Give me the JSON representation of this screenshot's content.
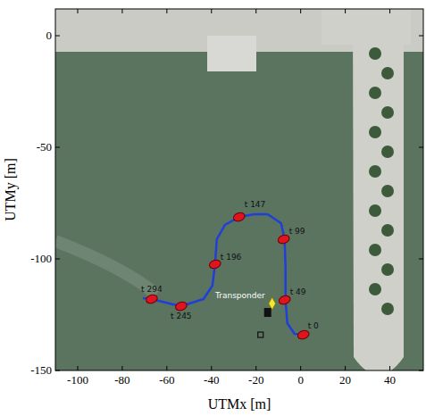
{
  "chart_data": {
    "type": "line",
    "x_label": "UTMx [m]",
    "y_label": "UTMy [m]",
    "xlim": [
      -110,
      55
    ],
    "ylim": [
      -150,
      12
    ],
    "xticks": [
      -100,
      -80,
      -60,
      -40,
      -20,
      0,
      20,
      40
    ],
    "yticks": [
      -150,
      -100,
      -50,
      0
    ],
    "grid": false,
    "series": [
      {
        "type": "line",
        "color": "#1f3fd8",
        "line_style": "solid",
        "x": [
          2.4,
          -2.8,
          -6,
          -6.8,
          -6.8,
          -7.2,
          -8.8,
          -14.8,
          -20.8,
          -27.6,
          -34,
          -37.6,
          -38.4,
          -39.6,
          -43.6,
          -53.6,
          -58.8,
          -66.8,
          -70.8
        ],
        "values": [
          -134,
          -133.6,
          -128.8,
          -118.4,
          -104,
          -91.2,
          -84,
          -80,
          -80,
          -81.2,
          -84.8,
          -91.2,
          -102.4,
          -112,
          -118,
          -121.2,
          -120,
          -118,
          -117.6
        ]
      },
      {
        "type": "scatter",
        "color": "#e0141e",
        "marker": "ellipse",
        "x": [
          1.2,
          -7.2,
          -7.6,
          -27.6,
          -38.4,
          -53.6,
          -66.8
        ],
        "values": [
          -134,
          -118.4,
          -91.2,
          -81.2,
          -102.4,
          -121.2,
          -118
        ],
        "labels": [
          "t 0",
          "t 49",
          "t 99",
          "t 147",
          "t 196",
          "t 245",
          "t 294"
        ]
      },
      {
        "type": "scatter",
        "color": "#f2e63a",
        "marker": "diamond",
        "x": [
          -12.8
        ],
        "values": [
          -120
        ],
        "labels": [
          "Transponder"
        ]
      },
      {
        "type": "scatter",
        "color": "#111111",
        "marker": "square",
        "x": [
          -14.8
        ],
        "values": [
          -124
        ]
      },
      {
        "type": "scatter",
        "color": "#111111",
        "marker": "open_square",
        "x": [
          -18
        ],
        "values": [
          -134
        ]
      }
    ]
  }
}
